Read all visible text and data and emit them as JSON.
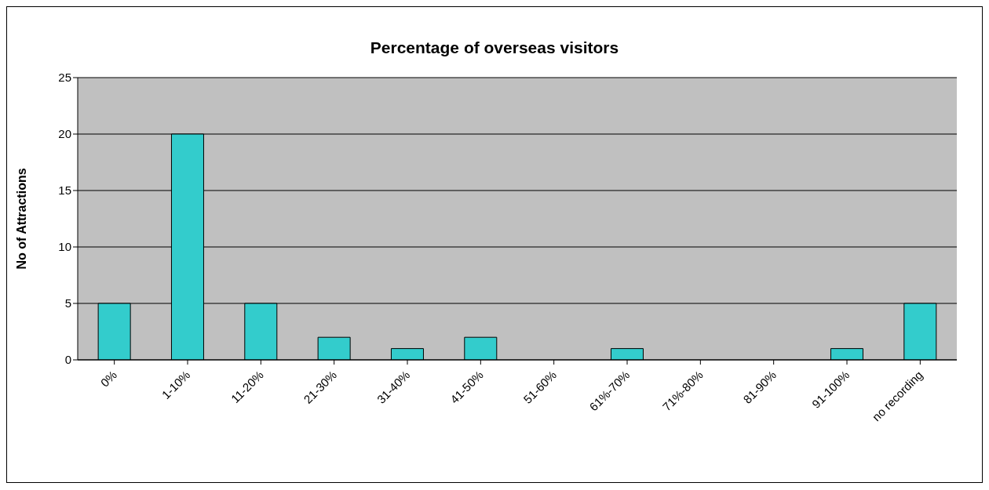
{
  "chart_data": {
    "type": "bar",
    "title": "Percentage of overseas visitors",
    "ylabel": "No of Attractions",
    "categories": [
      "0%",
      "1-10%",
      "11-20%",
      "21-30%",
      "31-40%",
      "41-50%",
      "51-60%",
      "61%-70%",
      "71%-80%",
      "81-90%",
      "91-100%",
      "no recording"
    ],
    "values": [
      5,
      20,
      5,
      2,
      1,
      2,
      0,
      1,
      0,
      0,
      1,
      5
    ],
    "color": "#33cccc",
    "ylim": [
      0,
      25
    ],
    "yticks": [
      0,
      5,
      10,
      15,
      20,
      25
    ],
    "grid": "y"
  }
}
